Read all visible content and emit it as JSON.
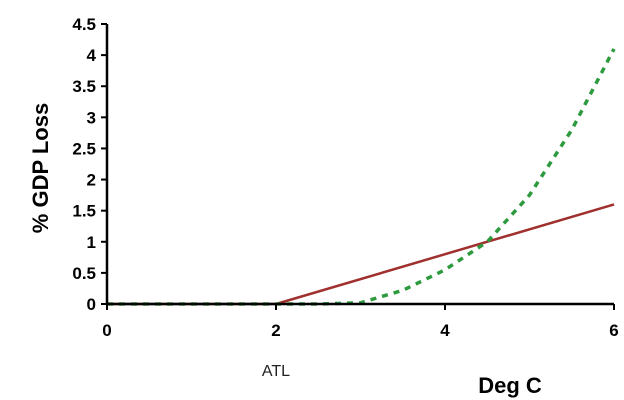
{
  "chart_data": {
    "type": "line",
    "xlabel": "Deg C",
    "ylabel": "% GDP Loss",
    "xlim": [
      0,
      6
    ],
    "ylim": [
      0,
      4.5
    ],
    "x_ticks": [
      "0",
      "2",
      "4",
      "6"
    ],
    "y_ticks": [
      "0",
      "0.5",
      "1",
      "1.5",
      "2",
      "2.5",
      "3",
      "3.5",
      "4",
      "4.5"
    ],
    "grid": false,
    "legend": "none",
    "annotations": [
      {
        "text": "ATL",
        "x": 2
      }
    ],
    "series": [
      {
        "style": "solid",
        "color": "#a0302e",
        "x": [
          0,
          2,
          6
        ],
        "y": [
          0,
          0,
          1.6
        ]
      },
      {
        "style": "dashed",
        "color": "#2e9a3e",
        "x": [
          0,
          2,
          2.5,
          3,
          3.5,
          4,
          4.5,
          5,
          5.5,
          6
        ],
        "y": [
          0,
          0,
          0,
          0.02,
          0.22,
          0.55,
          1.0,
          1.75,
          2.8,
          4.1
        ]
      }
    ]
  }
}
